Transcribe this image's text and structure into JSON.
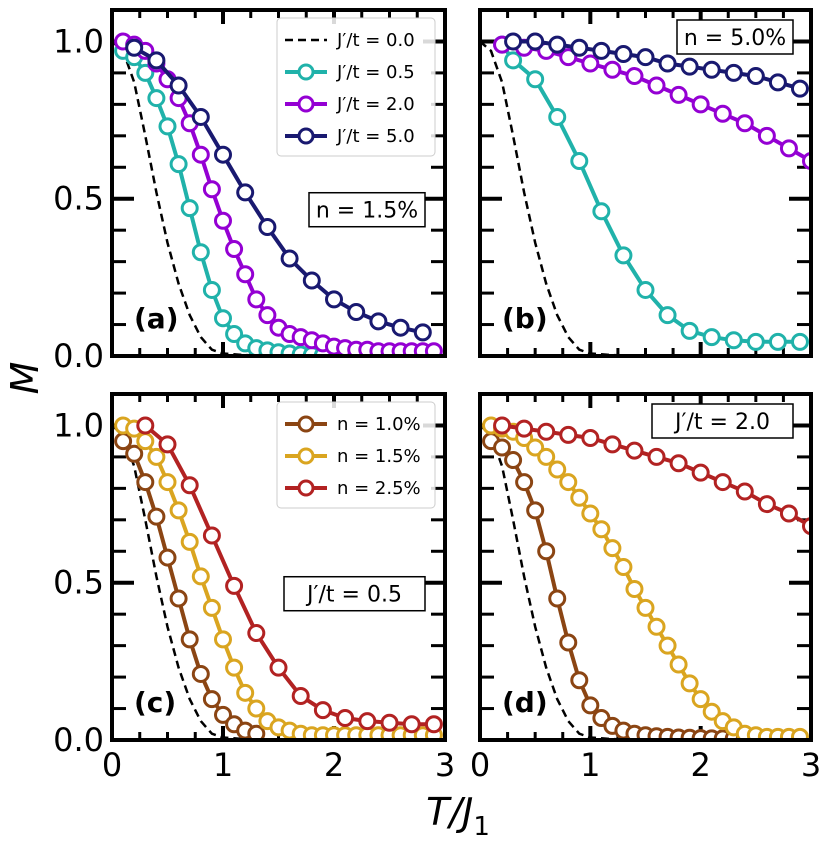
{
  "figure": {
    "xlabel": "T/J",
    "xlabel_sub": "1",
    "ylabel": "M"
  },
  "chart_data": [
    {
      "type": "line",
      "panel_label": "(a)",
      "annotation": "n = 1.5%",
      "annotation_position": "middle-right",
      "legend_position": "top-right",
      "xlim": [
        0,
        3
      ],
      "ylim": [
        0,
        1.1
      ],
      "xticks": [
        0,
        1,
        2,
        3
      ],
      "xticklabels": [
        "",
        "",
        "",
        ""
      ],
      "yticks": [
        0,
        0.5,
        1.0
      ],
      "yticklabels": [
        "0.0",
        "0.5",
        "1.0"
      ],
      "reference": {
        "name": "J′/t = 0.0",
        "style": "dashed",
        "color": "#000000",
        "x": [
          0.0,
          0.1,
          0.2,
          0.3,
          0.4,
          0.5,
          0.6,
          0.7,
          0.8,
          0.9,
          1.0,
          1.2,
          1.4,
          1.6,
          1.8,
          2.0,
          3.0
        ],
        "y": [
          1.0,
          0.97,
          0.87,
          0.7,
          0.52,
          0.36,
          0.23,
          0.13,
          0.06,
          0.02,
          0.008,
          0.003,
          0.001,
          0.0,
          0.0,
          0.0,
          0.0
        ]
      },
      "series": [
        {
          "name": "J′/t = 0.5",
          "color": "#20b2aa",
          "x": [
            0.1,
            0.2,
            0.3,
            0.4,
            0.5,
            0.6,
            0.7,
            0.8,
            0.9,
            1.0,
            1.1,
            1.2,
            1.3,
            1.4,
            1.5,
            1.6,
            1.7,
            1.8,
            1.9
          ],
          "y": [
            0.97,
            0.95,
            0.9,
            0.82,
            0.73,
            0.61,
            0.47,
            0.33,
            0.21,
            0.12,
            0.07,
            0.04,
            0.025,
            0.018,
            0.012,
            0.008,
            0.005,
            0.003,
            0.002
          ]
        },
        {
          "name": "J′/t = 2.0",
          "color": "#9400d3",
          "x": [
            0.1,
            0.2,
            0.3,
            0.4,
            0.5,
            0.6,
            0.7,
            0.8,
            0.9,
            1.0,
            1.1,
            1.2,
            1.3,
            1.4,
            1.5,
            1.6,
            1.7,
            1.8,
            1.9,
            2.0,
            2.1,
            2.2,
            2.3,
            2.4,
            2.5,
            2.6,
            2.7,
            2.8,
            2.9
          ],
          "y": [
            1.0,
            0.99,
            0.97,
            0.93,
            0.88,
            0.82,
            0.74,
            0.64,
            0.53,
            0.43,
            0.34,
            0.26,
            0.18,
            0.13,
            0.09,
            0.07,
            0.06,
            0.05,
            0.04,
            0.03,
            0.025,
            0.02,
            0.02,
            0.015,
            0.015,
            0.015,
            0.015,
            0.015,
            0.015
          ]
        },
        {
          "name": "J′/t = 5.0",
          "color": "#191970",
          "x": [
            0.2,
            0.4,
            0.6,
            0.8,
            1.0,
            1.2,
            1.4,
            1.6,
            1.8,
            2.0,
            2.2,
            2.4,
            2.6,
            2.8
          ],
          "y": [
            0.98,
            0.94,
            0.86,
            0.76,
            0.64,
            0.52,
            0.41,
            0.31,
            0.24,
            0.18,
            0.14,
            0.11,
            0.09,
            0.075
          ]
        }
      ]
    },
    {
      "type": "line",
      "panel_label": "(b)",
      "annotation": "n = 5.0%",
      "annotation_position": "top-right",
      "xlim": [
        0,
        3
      ],
      "ylim": [
        0,
        1.1
      ],
      "xticks": [
        0,
        1,
        2,
        3
      ],
      "xticklabels": [
        "",
        "",
        "",
        ""
      ],
      "yticks": [
        0,
        0.5,
        1.0
      ],
      "yticklabels": [
        "",
        "",
        ""
      ],
      "reference": {
        "name": "J′/t = 0.0",
        "style": "dashed",
        "color": "#000000",
        "x": [
          0.0,
          0.1,
          0.2,
          0.3,
          0.4,
          0.5,
          0.6,
          0.7,
          0.8,
          0.9,
          1.0,
          1.2,
          1.4,
          1.6,
          1.8,
          2.0,
          3.0
        ],
        "y": [
          1.0,
          0.97,
          0.87,
          0.7,
          0.52,
          0.36,
          0.23,
          0.13,
          0.06,
          0.02,
          0.008,
          0.003,
          0.001,
          0.0,
          0.0,
          0.0,
          0.0
        ]
      },
      "series": [
        {
          "name": "J′/t = 0.5",
          "color": "#20b2aa",
          "x": [
            0.2,
            0.3,
            0.5,
            0.7,
            0.9,
            1.1,
            1.3,
            1.5,
            1.7,
            1.9,
            2.1,
            2.3,
            2.5,
            2.7,
            2.9
          ],
          "y": [
            0.99,
            0.94,
            0.88,
            0.76,
            0.62,
            0.46,
            0.32,
            0.21,
            0.13,
            0.08,
            0.06,
            0.05,
            0.045,
            0.045,
            0.045
          ]
        },
        {
          "name": "J′/t = 2.0",
          "color": "#9400d3",
          "x": [
            0.2,
            0.4,
            0.6,
            0.8,
            1.0,
            1.2,
            1.4,
            1.6,
            1.8,
            2.0,
            2.2,
            2.4,
            2.6,
            2.8,
            3.0
          ],
          "y": [
            0.99,
            0.98,
            0.97,
            0.95,
            0.93,
            0.91,
            0.89,
            0.86,
            0.83,
            0.8,
            0.77,
            0.74,
            0.7,
            0.66,
            0.62
          ]
        },
        {
          "name": "J′/t = 5.0",
          "color": "#191970",
          "x": [
            0.3,
            0.5,
            0.7,
            0.9,
            1.1,
            1.3,
            1.5,
            1.7,
            1.9,
            2.1,
            2.3,
            2.5,
            2.7,
            2.9
          ],
          "y": [
            1.0,
            1.0,
            0.99,
            0.98,
            0.97,
            0.96,
            0.95,
            0.93,
            0.92,
            0.91,
            0.9,
            0.89,
            0.87,
            0.85
          ]
        }
      ]
    },
    {
      "type": "line",
      "panel_label": "(c)",
      "annotation": "J′/t = 0.5",
      "annotation_position": "middle-right",
      "legend_position": "top-right",
      "xlim": [
        0,
        3
      ],
      "ylim": [
        0,
        1.1
      ],
      "xticks": [
        0,
        1,
        2,
        3
      ],
      "xticklabels": [
        "0",
        "1",
        "2",
        "3"
      ],
      "yticks": [
        0,
        0.5,
        1.0
      ],
      "yticklabels": [
        "0.0",
        "0.5",
        "1.0"
      ],
      "reference": {
        "name": "",
        "style": "dashed",
        "color": "#000000",
        "x": [
          0.0,
          0.1,
          0.2,
          0.3,
          0.4,
          0.5,
          0.6,
          0.7,
          0.8,
          0.9,
          1.0,
          1.2,
          1.4,
          1.6,
          1.8,
          2.0,
          3.0
        ],
        "y": [
          1.0,
          0.97,
          0.87,
          0.7,
          0.52,
          0.36,
          0.23,
          0.13,
          0.06,
          0.02,
          0.008,
          0.003,
          0.001,
          0.0,
          0.0,
          0.0,
          0.0
        ]
      },
      "series": [
        {
          "name": "n = 1.0%",
          "color": "#8b4513",
          "x": [
            0.1,
            0.2,
            0.3,
            0.4,
            0.5,
            0.6,
            0.7,
            0.8,
            0.9,
            1.0,
            1.1,
            1.2,
            1.3
          ],
          "y": [
            0.95,
            0.91,
            0.82,
            0.71,
            0.58,
            0.45,
            0.32,
            0.21,
            0.13,
            0.08,
            0.05,
            0.03,
            0.02
          ]
        },
        {
          "name": "n = 1.5%",
          "color": "#daa520",
          "x": [
            0.1,
            0.2,
            0.3,
            0.4,
            0.5,
            0.6,
            0.7,
            0.8,
            0.9,
            1.0,
            1.1,
            1.2,
            1.3,
            1.4,
            1.5,
            1.6,
            1.7,
            1.8,
            1.9,
            2.0,
            2.1,
            2.2,
            2.3,
            2.4,
            2.5,
            2.6,
            2.7,
            2.8,
            2.9
          ],
          "y": [
            1.0,
            0.99,
            0.95,
            0.9,
            0.82,
            0.73,
            0.63,
            0.52,
            0.42,
            0.32,
            0.23,
            0.15,
            0.1,
            0.06,
            0.04,
            0.03,
            0.02,
            0.015,
            0.015,
            0.015,
            0.015,
            0.015,
            0.015,
            0.015,
            0.015,
            0.015,
            0.015,
            0.015,
            0.015
          ]
        },
        {
          "name": "n = 2.5%",
          "color": "#b22222",
          "x": [
            0.3,
            0.5,
            0.7,
            0.9,
            1.1,
            1.3,
            1.5,
            1.7,
            1.9,
            2.1,
            2.3,
            2.5,
            2.7,
            2.9
          ],
          "y": [
            1.0,
            0.94,
            0.81,
            0.65,
            0.49,
            0.34,
            0.23,
            0.14,
            0.095,
            0.07,
            0.06,
            0.055,
            0.05,
            0.05
          ]
        }
      ]
    },
    {
      "type": "line",
      "panel_label": "(d)",
      "annotation": "J′/t = 2.0",
      "annotation_position": "top-right",
      "xlim": [
        0,
        3
      ],
      "ylim": [
        0,
        1.1
      ],
      "xticks": [
        0,
        1,
        2,
        3
      ],
      "xticklabels": [
        "0",
        "1",
        "2",
        "3"
      ],
      "yticks": [
        0,
        0.5,
        1.0
      ],
      "yticklabels": [
        "",
        "",
        ""
      ],
      "reference": {
        "name": "",
        "style": "dashed",
        "color": "#000000",
        "x": [
          0.0,
          0.1,
          0.2,
          0.3,
          0.4,
          0.5,
          0.6,
          0.7,
          0.8,
          0.9,
          1.0,
          1.2,
          1.4,
          1.6,
          1.8,
          2.0,
          3.0
        ],
        "y": [
          1.0,
          0.97,
          0.87,
          0.7,
          0.52,
          0.36,
          0.23,
          0.13,
          0.06,
          0.02,
          0.008,
          0.003,
          0.001,
          0.0,
          0.0,
          0.0,
          0.0
        ]
      },
      "series": [
        {
          "name": "n = 1.0%",
          "color": "#8b4513",
          "x": [
            0.1,
            0.2,
            0.3,
            0.4,
            0.5,
            0.6,
            0.7,
            0.8,
            0.9,
            1.0,
            1.1,
            1.2,
            1.3,
            1.4,
            1.5,
            1.6,
            1.7,
            1.8,
            1.9,
            2.0,
            2.1,
            2.2,
            2.3,
            2.4
          ],
          "y": [
            0.95,
            0.93,
            0.89,
            0.82,
            0.73,
            0.6,
            0.45,
            0.31,
            0.19,
            0.11,
            0.07,
            0.045,
            0.03,
            0.02,
            0.015,
            0.012,
            0.01,
            0.008,
            0.007,
            0.006,
            0.005,
            0.005,
            0.005,
            0.005
          ]
        },
        {
          "name": "n = 1.5%",
          "color": "#daa520",
          "x": [
            0.1,
            0.2,
            0.3,
            0.4,
            0.5,
            0.6,
            0.7,
            0.8,
            0.9,
            1.0,
            1.1,
            1.2,
            1.3,
            1.4,
            1.5,
            1.6,
            1.7,
            1.8,
            1.9,
            2.0,
            2.1,
            2.2,
            2.3,
            2.4,
            2.5,
            2.6,
            2.7,
            2.8,
            2.9
          ],
          "y": [
            1.0,
            0.99,
            0.98,
            0.96,
            0.93,
            0.9,
            0.86,
            0.82,
            0.77,
            0.72,
            0.67,
            0.61,
            0.55,
            0.48,
            0.42,
            0.36,
            0.3,
            0.24,
            0.18,
            0.13,
            0.09,
            0.06,
            0.04,
            0.02,
            0.015,
            0.01,
            0.01,
            0.01,
            0.01
          ]
        },
        {
          "name": "n = 2.5%",
          "color": "#b22222",
          "x": [
            0.2,
            0.4,
            0.6,
            0.8,
            1.0,
            1.2,
            1.4,
            1.6,
            1.8,
            2.0,
            2.2,
            2.4,
            2.6,
            2.8,
            3.0
          ],
          "y": [
            1.0,
            0.99,
            0.98,
            0.97,
            0.96,
            0.94,
            0.92,
            0.9,
            0.88,
            0.85,
            0.82,
            0.79,
            0.75,
            0.72,
            0.68
          ]
        }
      ]
    }
  ]
}
